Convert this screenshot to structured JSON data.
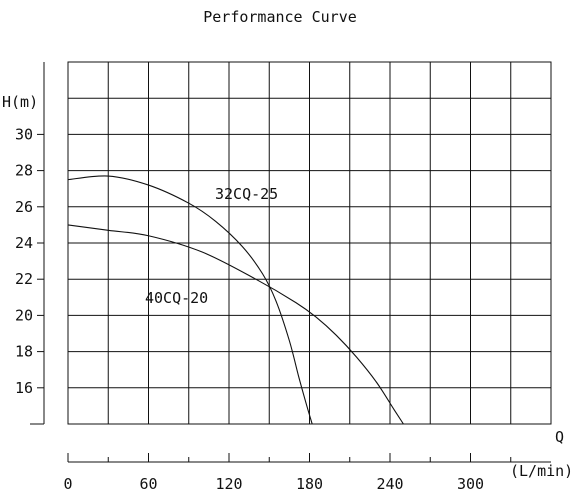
{
  "chart_data": {
    "type": "line",
    "title": "Performance Curve",
    "ylabel": "H(m)",
    "xlabel": "Q",
    "xunit": "(L/min)",
    "xlim": [
      0,
      360
    ],
    "ylim": [
      14,
      34
    ],
    "x_ticks": [
      "0",
      "60",
      "120",
      "180",
      "240",
      "300"
    ],
    "y_ticks": [
      "16",
      "18",
      "20",
      "22",
      "24",
      "26",
      "28",
      "30"
    ],
    "series": [
      {
        "name": "32CQ-25",
        "points": [
          [
            0,
            27.5
          ],
          [
            30,
            27.7
          ],
          [
            60,
            27.2
          ],
          [
            90,
            26.2
          ],
          [
            110,
            25.2
          ],
          [
            130,
            23.8
          ],
          [
            145,
            22.3
          ],
          [
            155,
            20.8
          ],
          [
            165,
            18.6
          ],
          [
            172,
            16.6
          ],
          [
            178,
            15.0
          ],
          [
            182,
            14.0
          ]
        ]
      },
      {
        "name": "40CQ-20",
        "points": [
          [
            0,
            25.0
          ],
          [
            30,
            24.7
          ],
          [
            60,
            24.4
          ],
          [
            100,
            23.5
          ],
          [
            140,
            22.0
          ],
          [
            170,
            20.7
          ],
          [
            185,
            19.9
          ],
          [
            200,
            18.9
          ],
          [
            215,
            17.7
          ],
          [
            230,
            16.3
          ],
          [
            243,
            14.8
          ],
          [
            250,
            14.0
          ]
        ]
      }
    ]
  }
}
